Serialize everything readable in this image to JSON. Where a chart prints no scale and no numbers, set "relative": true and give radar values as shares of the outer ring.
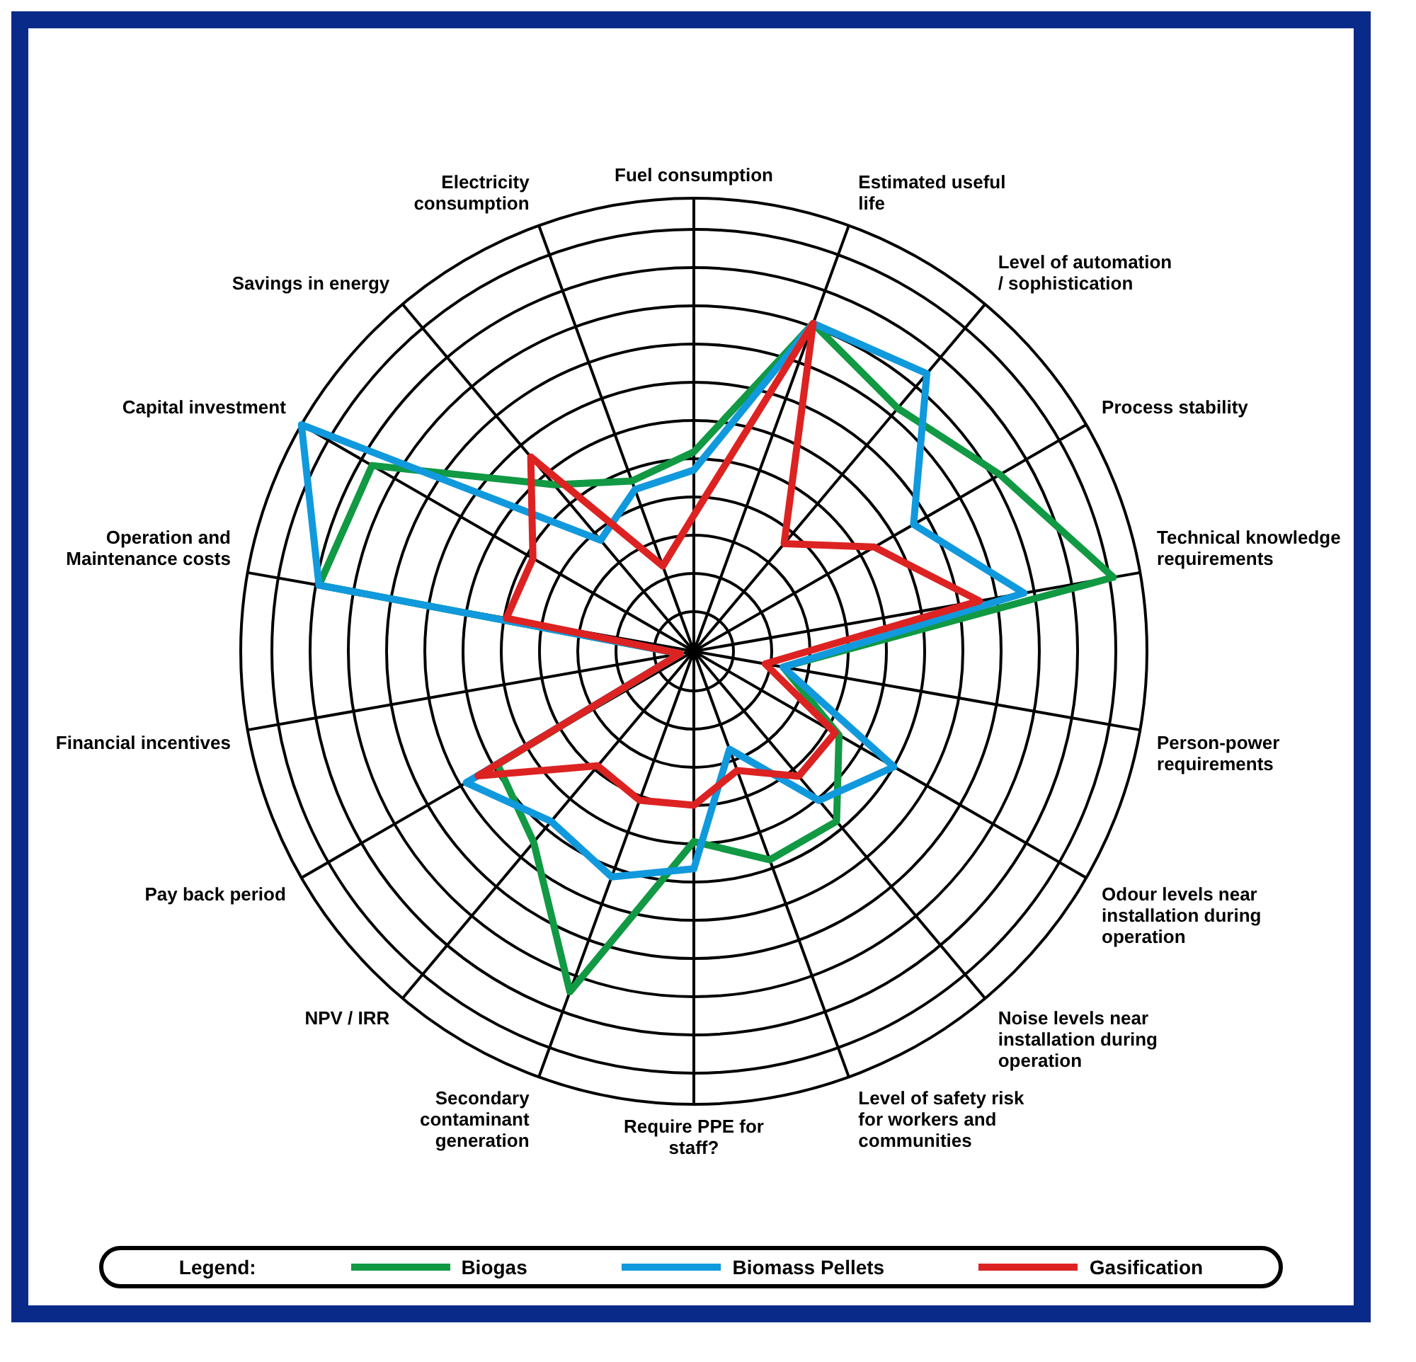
{
  "chart_data": {
    "type": "radar",
    "relative": true,
    "grid": true,
    "legend": "bottom",
    "legend_title": "Legend:",
    "categories": [
      "Fuel consumption",
      "Estimated useful life",
      "Level of automation / sophistication",
      "Process stability",
      "Technical knowledge requirements",
      "Person-power requirements",
      "Odour levels near installation during operation",
      "Noise levels near installation during operation",
      "Level of safety risk for workers and communities",
      "Require PPE for staff?",
      "Secondary contaminant generation",
      "NPV / IRR",
      "Pay back period",
      "Financial incentives",
      "Operation and Maintenance costs",
      "Capital investment",
      "Savings in energy",
      "Electricity consumption"
    ],
    "series": [
      {
        "name": "Biogas",
        "color": "#119944",
        "values": [
          0.44,
          0.77,
          0.7,
          0.78,
          0.94,
          0.2,
          0.37,
          0.49,
          0.49,
          0.42,
          0.8,
          0.55,
          0.5,
          0.03,
          0.84,
          0.82,
          0.48,
          0.4
        ]
      },
      {
        "name": "Biomass Pellets",
        "color": "#1199dd",
        "values": [
          0.4,
          0.77,
          0.8,
          0.56,
          0.74,
          0.2,
          0.51,
          0.43,
          0.23,
          0.48,
          0.53,
          0.49,
          0.58,
          0.03,
          0.84,
          1,
          0.32,
          0.38
        ]
      },
      {
        "name": "Gasification",
        "color": "#dd2222",
        "values": [
          0.3,
          0.77,
          0.31,
          0.46,
          0.64,
          0.16,
          0.36,
          0.36,
          0.28,
          0.34,
          0.35,
          0.33,
          0.55,
          0.03,
          0.42,
          0.41,
          0.56,
          0.2
        ]
      }
    ]
  }
}
